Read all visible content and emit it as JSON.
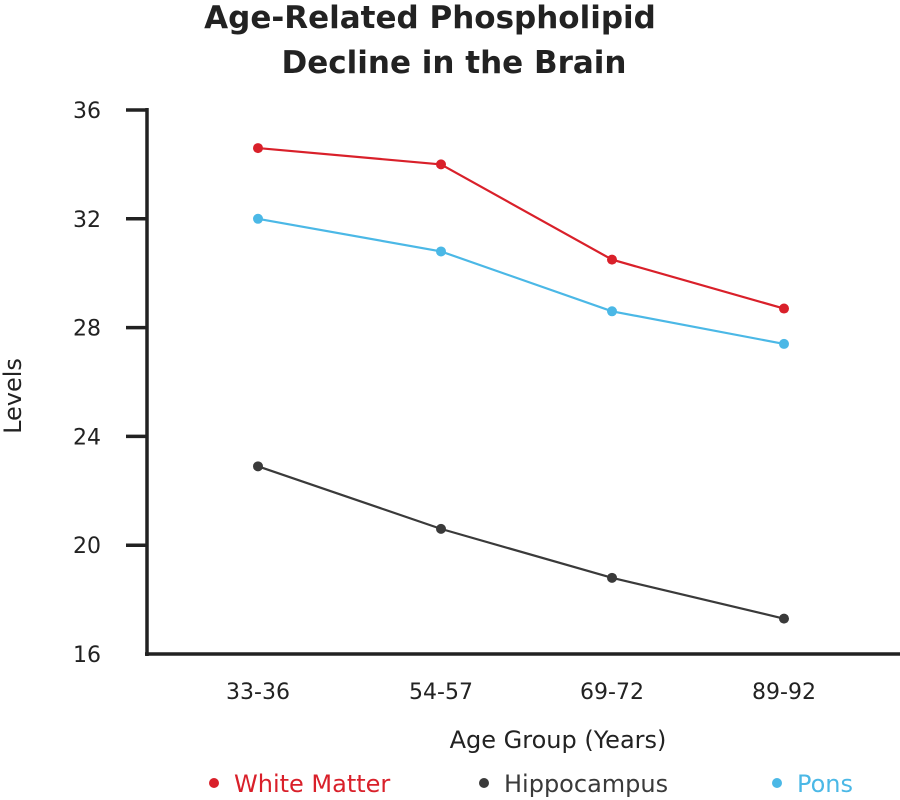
{
  "chart_data": {
    "type": "line",
    "title": "Age-Related Phospholipid Decline in the Brain",
    "title_lines": [
      "Age-Related Phospholipid",
      "Decline in the Brain"
    ],
    "xlabel": "Age Group (Years)",
    "ylabel": "Levels",
    "categories": [
      "33-36",
      "54-57",
      "69-72",
      "89-92"
    ],
    "ylim": [
      16,
      36
    ],
    "yticks": [
      16,
      20,
      24,
      28,
      32,
      36
    ],
    "grid": false,
    "legend_position": "bottom",
    "series": [
      {
        "name": "White Matter",
        "color": "#d9202a",
        "values": [
          34.6,
          34.0,
          30.5,
          28.7
        ]
      },
      {
        "name": "Hippocampus",
        "color": "#3a3a3a",
        "values": [
          22.9,
          20.6,
          18.8,
          17.3
        ]
      },
      {
        "name": "Pons",
        "color": "#4bb8e6",
        "values": [
          32.0,
          30.8,
          28.6,
          27.4
        ]
      }
    ]
  }
}
